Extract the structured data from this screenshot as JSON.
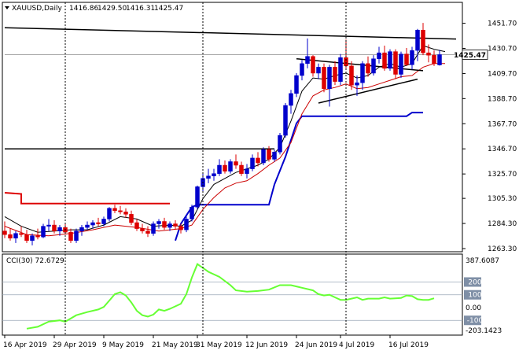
{
  "chart_data": [
    {
      "type": "candlestick",
      "title": "XAUUSD,Daily",
      "ohlc_header": [
        "1416.86",
        "1429.50",
        "1416.31",
        "1425.47"
      ],
      "last_price_label": "1425.47",
      "colors": {
        "up": "#0000cc",
        "down": "#dd0000",
        "ma_fast": "#000000",
        "ma_slow": "#cc0000",
        "stop_blue": "#0000cc",
        "stop_red": "#dd0000",
        "trendline": "#000000"
      },
      "ylim": [
        1263.3,
        1458.0
      ],
      "y_ticks": [
        "1451.70",
        "1430.70",
        "1409.70",
        "1388.70",
        "1367.70",
        "1346.70",
        "1325.70",
        "1305.30",
        "1284.30",
        "1263.30"
      ],
      "x_ticks": [
        {
          "index": 0,
          "label": "16 Apr 2019"
        },
        {
          "index": 9,
          "label": "29 Apr 2019"
        },
        {
          "index": 18,
          "label": "9 May 2019"
        },
        {
          "index": 27,
          "label": "21 May 2019"
        },
        {
          "index": 35,
          "label": "31 May 2019"
        },
        {
          "index": 44,
          "label": "12 Jun 2019"
        },
        {
          "index": 53,
          "label": "24 Jun 2019"
        },
        {
          "index": 61,
          "label": "4 Jul 2019"
        },
        {
          "index": 70,
          "label": "16 Jul 2019"
        }
      ],
      "period_separators": [
        11,
        36,
        62
      ],
      "candles": [
        [
          1278,
          1286,
          1272,
          1275
        ],
        [
          1275,
          1280,
          1270,
          1272
        ],
        [
          1272,
          1278,
          1268,
          1276
        ],
        [
          1276,
          1282,
          1273,
          1275
        ],
        [
          1275,
          1279,
          1268,
          1270
        ],
        [
          1270,
          1276,
          1266,
          1274
        ],
        [
          1274,
          1280,
          1271,
          1273
        ],
        [
          1273,
          1284,
          1272,
          1282
        ],
        [
          1282,
          1288,
          1278,
          1283
        ],
        [
          1283,
          1287,
          1276,
          1278
        ],
        [
          1278,
          1283,
          1274,
          1281
        ],
        [
          1281,
          1285,
          1275,
          1277
        ],
        [
          1277,
          1280,
          1268,
          1270
        ],
        [
          1270,
          1280,
          1268,
          1278
        ],
        [
          1278,
          1283,
          1274,
          1281
        ],
        [
          1281,
          1286,
          1279,
          1283
        ],
        [
          1283,
          1287,
          1280,
          1285
        ],
        [
          1285,
          1289,
          1282,
          1284
        ],
        [
          1284,
          1290,
          1282,
          1288
        ],
        [
          1288,
          1298,
          1286,
          1297
        ],
        [
          1297,
          1300,
          1293,
          1295
        ],
        [
          1295,
          1299,
          1292,
          1294
        ],
        [
          1294,
          1297,
          1289,
          1292
        ],
        [
          1292,
          1295,
          1283,
          1285
        ],
        [
          1285,
          1288,
          1278,
          1280
        ],
        [
          1280,
          1284,
          1276,
          1278
        ],
        [
          1278,
          1282,
          1273,
          1276
        ],
        [
          1276,
          1286,
          1274,
          1284
        ],
        [
          1284,
          1288,
          1280,
          1286
        ],
        [
          1286,
          1289,
          1279,
          1281
        ],
        [
          1281,
          1286,
          1278,
          1284
        ],
        [
          1284,
          1287,
          1279,
          1282
        ],
        [
          1282,
          1284,
          1276,
          1279
        ],
        [
          1279,
          1290,
          1277,
          1288
        ],
        [
          1288,
          1300,
          1286,
          1298
        ],
        [
          1298,
          1316,
          1296,
          1315
        ],
        [
          1315,
          1326,
          1311,
          1322
        ],
        [
          1322,
          1330,
          1318,
          1324
        ],
        [
          1324,
          1330,
          1320,
          1326
        ],
        [
          1326,
          1338,
          1324,
          1333
        ],
        [
          1333,
          1337,
          1326,
          1328
        ],
        [
          1328,
          1338,
          1326,
          1336
        ],
        [
          1336,
          1342,
          1330,
          1333
        ],
        [
          1333,
          1336,
          1324,
          1326
        ],
        [
          1326,
          1334,
          1322,
          1330
        ],
        [
          1330,
          1342,
          1328,
          1339
        ],
        [
          1339,
          1344,
          1332,
          1335
        ],
        [
          1335,
          1348,
          1333,
          1346
        ],
        [
          1346,
          1349,
          1336,
          1338
        ],
        [
          1338,
          1346,
          1336,
          1344
        ],
        [
          1344,
          1360,
          1342,
          1358
        ],
        [
          1358,
          1385,
          1356,
          1383
        ],
        [
          1383,
          1396,
          1376,
          1393
        ],
        [
          1393,
          1410,
          1390,
          1408
        ],
        [
          1408,
          1421,
          1404,
          1418
        ],
        [
          1418,
          1439,
          1414,
          1424
        ],
        [
          1424,
          1425,
          1407,
          1410
        ],
        [
          1410,
          1418,
          1405,
          1415
        ],
        [
          1415,
          1418,
          1394,
          1397
        ],
        [
          1397,
          1417,
          1382,
          1415
        ],
        [
          1415,
          1420,
          1400,
          1403
        ],
        [
          1403,
          1426,
          1400,
          1423
        ],
        [
          1423,
          1438,
          1414,
          1416
        ],
        [
          1416,
          1420,
          1396,
          1400
        ],
        [
          1400,
          1408,
          1391,
          1402
        ],
        [
          1402,
          1420,
          1396,
          1418
        ],
        [
          1418,
          1424,
          1407,
          1410
        ],
        [
          1410,
          1425,
          1408,
          1422
        ],
        [
          1422,
          1432,
          1418,
          1427
        ],
        [
          1427,
          1433,
          1412,
          1414
        ],
        [
          1414,
          1430,
          1412,
          1428
        ],
        [
          1428,
          1430,
          1405,
          1409
        ],
        [
          1409,
          1428,
          1406,
          1426
        ],
        [
          1426,
          1431,
          1416,
          1417
        ],
        [
          1417,
          1432,
          1413,
          1429
        ],
        [
          1429,
          1447,
          1420,
          1446
        ],
        [
          1446,
          1452,
          1425,
          1427
        ],
        [
          1427,
          1434,
          1419,
          1425
        ],
        [
          1425,
          1429,
          1416,
          1418
        ],
        [
          1416.86,
          1429.5,
          1416.31,
          1425.47
        ]
      ],
      "ma_fast_points": [
        [
          0,
          1290
        ],
        [
          3,
          1282
        ],
        [
          6,
          1277
        ],
        [
          9,
          1278
        ],
        [
          12,
          1279
        ],
        [
          15,
          1279
        ],
        [
          18,
          1283
        ],
        [
          21,
          1290
        ],
        [
          24,
          1288
        ],
        [
          27,
          1282
        ],
        [
          30,
          1283
        ],
        [
          32,
          1282
        ],
        [
          34,
          1287
        ],
        [
          36,
          1305
        ],
        [
          38,
          1317
        ],
        [
          40,
          1322
        ],
        [
          42,
          1327
        ],
        [
          44,
          1330
        ],
        [
          46,
          1333
        ],
        [
          48,
          1338
        ],
        [
          50,
          1348
        ],
        [
          52,
          1370
        ],
        [
          54,
          1395
        ],
        [
          56,
          1406
        ],
        [
          58,
          1405
        ],
        [
          60,
          1408
        ],
        [
          62,
          1410
        ],
        [
          64,
          1406
        ],
        [
          66,
          1408
        ],
        [
          68,
          1415
        ],
        [
          70,
          1418
        ],
        [
          72,
          1415
        ],
        [
          74,
          1418
        ],
        [
          76,
          1433
        ],
        [
          78,
          1430
        ],
        [
          80,
          1428
        ]
      ],
      "ma_slow_points": [
        [
          0,
          1282
        ],
        [
          4,
          1275
        ],
        [
          8,
          1274
        ],
        [
          12,
          1276
        ],
        [
          16,
          1279
        ],
        [
          20,
          1283
        ],
        [
          24,
          1281
        ],
        [
          28,
          1278
        ],
        [
          32,
          1280
        ],
        [
          34,
          1283
        ],
        [
          36,
          1296
        ],
        [
          38,
          1306
        ],
        [
          40,
          1314
        ],
        [
          42,
          1318
        ],
        [
          44,
          1320
        ],
        [
          46,
          1326
        ],
        [
          48,
          1333
        ],
        [
          50,
          1339
        ],
        [
          52,
          1352
        ],
        [
          54,
          1376
        ],
        [
          56,
          1391
        ],
        [
          58,
          1396
        ],
        [
          60,
          1398
        ],
        [
          62,
          1401
        ],
        [
          64,
          1397
        ],
        [
          66,
          1398
        ],
        [
          68,
          1401
        ],
        [
          70,
          1404
        ],
        [
          72,
          1407
        ],
        [
          74,
          1408
        ],
        [
          76,
          1415
        ],
        [
          78,
          1418
        ],
        [
          80,
          1418
        ]
      ],
      "stop_red_points": [
        [
          0,
          1310
        ],
        [
          3,
          1309
        ],
        [
          3,
          1301
        ],
        [
          30,
          1301
        ]
      ],
      "stop_blue_points": [
        [
          31,
          1270
        ],
        [
          32,
          1284
        ],
        [
          34,
          1298
        ],
        [
          35,
          1300
        ],
        [
          36,
          1300
        ],
        [
          48,
          1300
        ],
        [
          49,
          1317
        ],
        [
          51,
          1340
        ],
        [
          53,
          1368
        ],
        [
          54,
          1374
        ],
        [
          73,
          1374
        ],
        [
          74,
          1377
        ],
        [
          76,
          1377
        ]
      ],
      "black_lines": [
        {
          "name": "resistance-trendline",
          "points": [
            [
              0,
              1448
            ],
            [
              82,
              1438.5
            ]
          ]
        },
        {
          "name": "horizontal-resistance",
          "points": [
            [
              0,
              1346.7
            ],
            [
              49,
              1346.7
            ]
          ]
        },
        {
          "name": "pennant-upper-line",
          "points": [
            [
              53,
              1422
            ],
            [
              76,
              1412
            ]
          ]
        },
        {
          "name": "pennant-lower-line",
          "points": [
            [
              57,
              1385
            ],
            [
              75,
              1405
            ]
          ]
        },
        {
          "name": "current-price-line",
          "points": [
            [
              0,
              1425.47
            ],
            [
              82,
              1425.47
            ]
          ]
        }
      ]
    },
    {
      "type": "line",
      "title": "CCI(30) 72.6729",
      "ylim": [
        -203.1423,
        387.6087
      ],
      "y_ticks": [
        "387.6087",
        "200",
        "100",
        "0.00",
        "-100",
        "-203.1423"
      ],
      "levels": [
        200,
        100,
        -100
      ],
      "series": [
        {
          "color": "#66ff33",
          "values": [
            [
              4,
              -165
            ],
            [
              6,
              -150
            ],
            [
              8,
              -110
            ],
            [
              10,
              -100
            ],
            [
              11,
              -110
            ],
            [
              13,
              -60
            ],
            [
              15,
              -35
            ],
            [
              17,
              -15
            ],
            [
              18,
              5
            ],
            [
              19,
              55
            ],
            [
              20,
              105
            ],
            [
              21,
              120
            ],
            [
              22,
              95
            ],
            [
              23,
              40
            ],
            [
              24,
              -25
            ],
            [
              25,
              -60
            ],
            [
              26,
              -70
            ],
            [
              27,
              -55
            ],
            [
              28,
              -15
            ],
            [
              29,
              -25
            ],
            [
              30,
              -10
            ],
            [
              32,
              30
            ],
            [
              33,
              105
            ],
            [
              34,
              235
            ],
            [
              35,
              340
            ],
            [
              36,
              310
            ],
            [
              37,
              280
            ],
            [
              39,
              240
            ],
            [
              41,
              175
            ],
            [
              42,
              135
            ],
            [
              44,
              125
            ],
            [
              46,
              130
            ],
            [
              48,
              140
            ],
            [
              50,
              175
            ],
            [
              52,
              175
            ],
            [
              54,
              155
            ],
            [
              56,
              135
            ],
            [
              57,
              105
            ],
            [
              58,
              95
            ],
            [
              59,
              100
            ],
            [
              60,
              80
            ],
            [
              61,
              60
            ],
            [
              62,
              60
            ],
            [
              63,
              70
            ],
            [
              64,
              80
            ],
            [
              65,
              60
            ],
            [
              66,
              70
            ],
            [
              67,
              70
            ],
            [
              68,
              70
            ],
            [
              69,
              80
            ],
            [
              70,
              70
            ],
            [
              72,
              75
            ],
            [
              73,
              95
            ],
            [
              74,
              90
            ],
            [
              75,
              65
            ],
            [
              76,
              60
            ],
            [
              77,
              60
            ],
            [
              78,
              72.6729
            ]
          ]
        }
      ]
    }
  ]
}
